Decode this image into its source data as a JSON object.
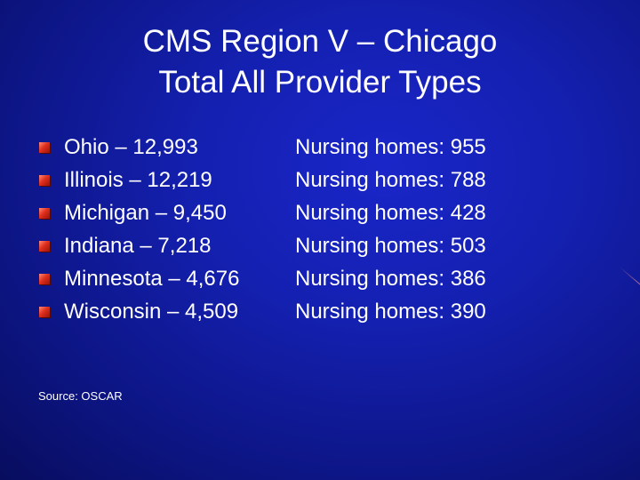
{
  "slide": {
    "title_line1": "CMS Region V – Chicago",
    "title_line2": "Total All Provider Types",
    "rows": [
      {
        "state": "Ohio – 12,993",
        "homes": "Nursing homes: 955"
      },
      {
        "state": "Illinois – 12,219",
        "homes": "Nursing homes: 788"
      },
      {
        "state": "Michigan – 9,450",
        "homes": "Nursing homes: 428"
      },
      {
        "state": "Indiana – 7,218",
        "homes": "Nursing homes: 503"
      },
      {
        "state": "Minnesota – 4,676",
        "homes": "Nursing homes: 386"
      },
      {
        "state": "Wisconsin – 4,509",
        "homes": "Nursing homes: 390"
      }
    ],
    "source": "Source: OSCAR"
  },
  "colors": {
    "background": "#1420b0",
    "bullet": "#e0301e",
    "text": "#ffffff"
  },
  "icons": {
    "bullet": "square-bullet-icon"
  }
}
